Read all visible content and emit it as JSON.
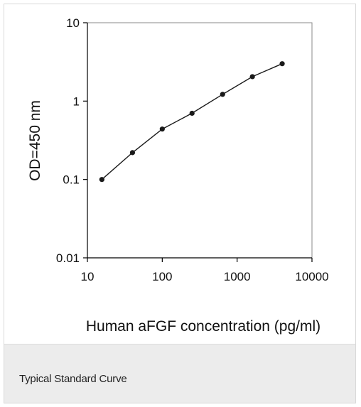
{
  "chart_data": {
    "type": "scatter",
    "title": "",
    "xlabel": "Human aFGF concentration (pg/ml)",
    "ylabel": "OD=450 nm",
    "x_scale": "log",
    "y_scale": "log",
    "xlim": [
      10,
      10000
    ],
    "ylim": [
      0.01,
      10
    ],
    "x_ticks": [
      {
        "value": 10,
        "label": "10"
      },
      {
        "value": 100,
        "label": "100"
      },
      {
        "value": 1000,
        "label": "1000"
      },
      {
        "value": 10000,
        "label": "10000"
      }
    ],
    "y_ticks": [
      {
        "value": 0.01,
        "label": "0.01"
      },
      {
        "value": 0.1,
        "label": "0.1"
      },
      {
        "value": 1,
        "label": "1"
      },
      {
        "value": 10,
        "label": "10"
      }
    ],
    "grid": false,
    "connected": true,
    "series": [
      {
        "color": "#1a1a1a",
        "points": [
          {
            "x": 15.6,
            "y": 0.1
          },
          {
            "x": 40,
            "y": 0.22
          },
          {
            "x": 100,
            "y": 0.44
          },
          {
            "x": 250,
            "y": 0.7
          },
          {
            "x": 640,
            "y": 1.22
          },
          {
            "x": 1600,
            "y": 2.05
          },
          {
            "x": 4000,
            "y": 3.0
          }
        ]
      }
    ]
  },
  "caption": {
    "text": "Typical Standard Curve"
  }
}
